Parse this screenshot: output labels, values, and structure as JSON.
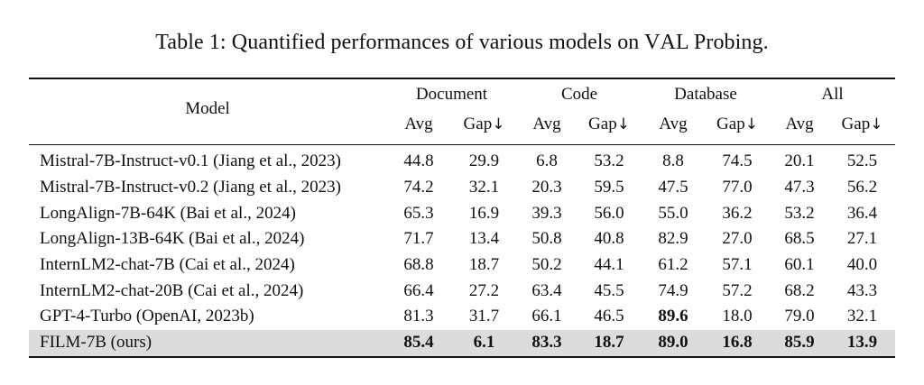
{
  "caption": {
    "prefix": "Table 1: Quantified performances of various models on ",
    "val_V": "V",
    "val_A": "A",
    "val_L": "L",
    "suffix": " Probing."
  },
  "header": {
    "model": "Model",
    "groups": [
      "Document",
      "Code",
      "Database",
      "All"
    ],
    "avg": "Avg",
    "gap": "Gap",
    "gap_arrow": "↓"
  },
  "rows": [
    {
      "model": "Mistral-7B-Instruct-v0.1 (Jiang et al., 2023)",
      "values": [
        "44.8",
        "29.9",
        "6.8",
        "53.2",
        "8.8",
        "74.5",
        "20.1",
        "52.5"
      ]
    },
    {
      "model": "Mistral-7B-Instruct-v0.2 (Jiang et al., 2023)",
      "values": [
        "74.2",
        "32.1",
        "20.3",
        "59.5",
        "47.5",
        "77.0",
        "47.3",
        "56.2"
      ]
    },
    {
      "model": "LongAlign-7B-64K (Bai et al., 2024)",
      "values": [
        "65.3",
        "16.9",
        "39.3",
        "56.0",
        "55.0",
        "36.2",
        "53.2",
        "36.4"
      ]
    },
    {
      "model": "LongAlign-13B-64K (Bai et al., 2024)",
      "values": [
        "71.7",
        "13.4",
        "50.8",
        "40.8",
        "82.9",
        "27.0",
        "68.5",
        "27.1"
      ]
    },
    {
      "model": "InternLM2-chat-7B (Cai et al., 2024)",
      "values": [
        "68.8",
        "18.7",
        "50.2",
        "44.1",
        "61.2",
        "57.1",
        "60.1",
        "40.0"
      ]
    },
    {
      "model": "InternLM2-chat-20B (Cai et al., 2024)",
      "values": [
        "66.4",
        "27.2",
        "63.4",
        "45.5",
        "74.9",
        "57.2",
        "68.2",
        "43.3"
      ]
    },
    {
      "model": "GPT-4-Turbo (OpenAI, 2023b)",
      "values": [
        "81.3",
        "31.7",
        "66.1",
        "46.5",
        "89.6",
        "18.0",
        "79.0",
        "32.1"
      ]
    }
  ],
  "ours": {
    "model_F": "F",
    "model_IL": "IL",
    "model_rest": "M-7B (ours)",
    "values": [
      "85.4",
      "6.1",
      "83.3",
      "18.7",
      "89.0",
      "16.8",
      "85.9",
      "13.9"
    ]
  }
}
